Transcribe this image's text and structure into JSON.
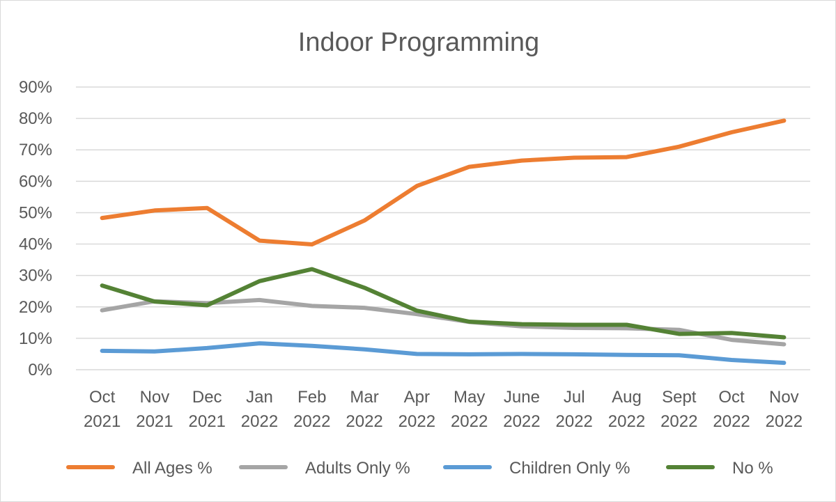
{
  "chart_data": {
    "type": "line",
    "title": "Indoor Programming",
    "xlabel": "",
    "ylabel": "",
    "ylim": [
      0,
      0.9
    ],
    "yticks": [
      "0%",
      "10%",
      "20%",
      "30%",
      "40%",
      "50%",
      "60%",
      "70%",
      "80%",
      "90%"
    ],
    "grid": true,
    "legend_position": "bottom",
    "categories": [
      [
        "Oct",
        "2021"
      ],
      [
        "Nov",
        "2021"
      ],
      [
        "Dec",
        "2021"
      ],
      [
        "Jan",
        "2022"
      ],
      [
        "Feb",
        "2022"
      ],
      [
        "Mar",
        "2022"
      ],
      [
        "Apr",
        "2022"
      ],
      [
        "May",
        "2022"
      ],
      [
        "June",
        "2022"
      ],
      [
        "Jul",
        "2022"
      ],
      [
        "Aug",
        "2022"
      ],
      [
        "Sept",
        "2022"
      ],
      [
        "Oct",
        "2022"
      ],
      [
        "Nov",
        "2022"
      ]
    ],
    "series": [
      {
        "name": "All Ages %",
        "color": "#ed7d31",
        "values": [
          0.483,
          0.507,
          0.515,
          0.411,
          0.399,
          0.475,
          0.585,
          0.646,
          0.666,
          0.675,
          0.677,
          0.71,
          0.756,
          0.793
        ]
      },
      {
        "name": "Adults Only %",
        "color": "#a5a5a5",
        "values": [
          0.189,
          0.218,
          0.212,
          0.222,
          0.203,
          0.197,
          0.177,
          0.152,
          0.138,
          0.133,
          0.132,
          0.127,
          0.095,
          0.081
        ]
      },
      {
        "name": "Children Only %",
        "color": "#5b9bd5",
        "values": [
          0.06,
          0.058,
          0.069,
          0.084,
          0.076,
          0.065,
          0.05,
          0.049,
          0.05,
          0.049,
          0.047,
          0.046,
          0.031,
          0.022
        ]
      },
      {
        "name": "No %",
        "color": "#548235",
        "values": [
          0.268,
          0.217,
          0.205,
          0.282,
          0.32,
          0.261,
          0.188,
          0.153,
          0.145,
          0.143,
          0.143,
          0.114,
          0.117,
          0.103
        ]
      }
    ]
  }
}
